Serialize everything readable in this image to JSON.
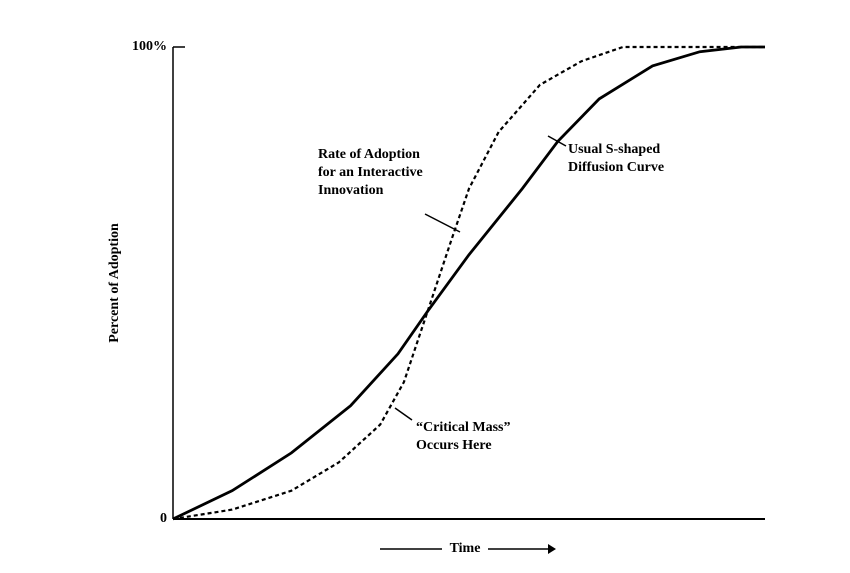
{
  "chart_data": {
    "type": "line",
    "y_label": "Percent of Adoption",
    "x_label": "Time",
    "xlim": [
      0,
      100
    ],
    "ylim": [
      0,
      100
    ],
    "yticks": [
      0,
      {
        "value": 100,
        "label": "100%"
      }
    ],
    "series": [
      {
        "color": "#000000",
        "style": "solid",
        "x": [
          0,
          10,
          20,
          30,
          38,
          43,
          50,
          59,
          65,
          72,
          81,
          89,
          96,
          100
        ],
        "values": [
          0,
          6,
          14,
          24,
          35,
          44,
          56,
          70,
          80,
          89,
          96,
          99,
          100,
          100
        ]
      },
      {
        "color": "#000000",
        "style": "dashed",
        "x": [
          0,
          10,
          20,
          28,
          35,
          39,
          43,
          47,
          50,
          55,
          62,
          69,
          76,
          86,
          100
        ],
        "values": [
          0,
          2,
          6,
          12,
          20,
          29,
          44,
          59,
          70,
          82,
          92,
          97,
          100,
          100,
          100
        ]
      }
    ],
    "annotations": [
      {
        "lines": [
          "Usual S-shaped",
          "Diffusion Curve"
        ]
      },
      {
        "lines": [
          "Rate of Adoption",
          "for an Interactive",
          "Innovation"
        ]
      },
      {
        "lines": [
          "“Critical Mass”",
          "Occurs Here"
        ]
      }
    ]
  }
}
